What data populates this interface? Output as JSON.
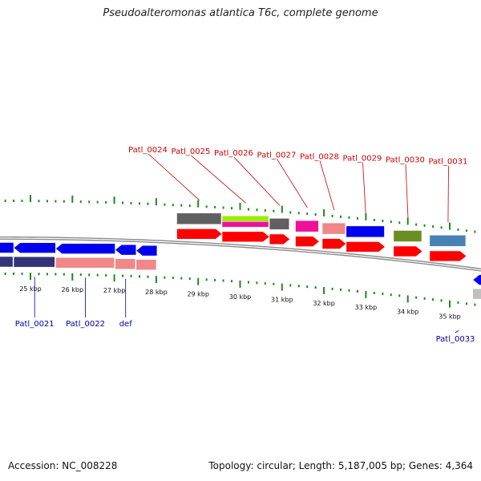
{
  "title": "Pseudoalteromonas atlantica T6c, complete genome",
  "accession": "Accession: NC_008228",
  "summary": "Topology: circular; Length: 5,187,005 bp; Genes: 4,364",
  "colors": {
    "tick_green": "#1a8a1a",
    "forward_label": "#cc0000",
    "reverse_label": "#0000aa",
    "backbone": "#8a8a8a",
    "cds_red": "#ff0000",
    "cds_blue": "#0000ee"
  },
  "axis": {
    "unit": "kbp",
    "ticks": [
      {
        "kb": 25,
        "label": "25 kbp"
      },
      {
        "kb": 26,
        "label": "26 kbp"
      },
      {
        "kb": 27,
        "label": "27 kbp"
      },
      {
        "kb": 28,
        "label": "28 kbp"
      },
      {
        "kb": 29,
        "label": "29 kbp"
      },
      {
        "kb": 30,
        "label": "30 kbp"
      },
      {
        "kb": 31,
        "label": "31 kbp"
      },
      {
        "kb": 32,
        "label": "32 kbp"
      },
      {
        "kb": 33,
        "label": "33 kbp"
      },
      {
        "kb": 34,
        "label": "34 kbp"
      },
      {
        "kb": 35,
        "label": "35 kbp"
      }
    ]
  },
  "genes": [
    {
      "label": "Patl_0024",
      "strand": "+",
      "start_kb": 28.49,
      "end_kb": 29.57,
      "label_color": "#cc0000",
      "cog_color": "#606060",
      "arrow_color": "#ff0000"
    },
    {
      "label": "Patl_0025",
      "strand": "+",
      "start_kb": 29.57,
      "end_kb": 30.7,
      "label_color": "#cc0000",
      "cog_color": "#99ee00",
      "cog_color2": "#ee1199",
      "arrow_color": "#ff0000"
    },
    {
      "label": "Patl_0026",
      "strand": "+",
      "start_kb": 30.7,
      "end_kb": 31.19,
      "label_color": "#cc0000",
      "cog_color": "#606060",
      "arrow_color": "#ff0000"
    },
    {
      "label": "Patl_0027",
      "strand": "+",
      "start_kb": 31.32,
      "end_kb": 31.89,
      "label_color": "#cc0000",
      "cog_color": "#ee1199",
      "arrow_color": "#ff0000"
    },
    {
      "label": "Patl_0028",
      "strand": "+",
      "start_kb": 31.96,
      "end_kb": 32.53,
      "label_color": "#cc0000",
      "cog_color": "#ee8888",
      "arrow_color": "#ff0000"
    },
    {
      "label": "Patl_0029",
      "strand": "+",
      "start_kb": 32.53,
      "end_kb": 33.46,
      "label_color": "#cc0000",
      "cog_color": "#0000ee",
      "arrow_color": "#ff0000"
    },
    {
      "label": "Patl_0030",
      "strand": "+",
      "start_kb": 33.66,
      "end_kb": 34.35,
      "label_color": "#cc0000",
      "cog_color": "#6b8e23",
      "arrow_color": "#ff0000"
    },
    {
      "label": "Patl_0031",
      "strand": "+",
      "start_kb": 34.52,
      "end_kb": 35.4,
      "label_color": "#cc0000",
      "cog_color": "#4682b4",
      "arrow_color": "#ff0000"
    },
    {
      "label": "Patl_0021",
      "strand": "-",
      "start_kb": 24.6,
      "end_kb": 25.6,
      "label_color": "#0000aa",
      "cog_color": "#333377",
      "arrow_color": "#0000ee"
    },
    {
      "label": "Patl_0022",
      "strand": "-",
      "start_kb": 25.6,
      "end_kb": 27.02,
      "label_color": "#0000aa",
      "cog_color": "#f08888",
      "arrow_color": "#0000ee"
    },
    {
      "label": "def",
      "strand": "-",
      "start_kb": 27.02,
      "end_kb": 27.52,
      "label_color": "#0000aa",
      "cog_color": "#f08888",
      "arrow_color": "#0000ee"
    },
    {
      "label": "Patl_0033",
      "strand": "-",
      "start_kb": 35.55,
      "end_kb": 36.1,
      "label_color": "#0000aa",
      "cog_color": "#c0c0c0",
      "arrow_color": "#0000ee"
    }
  ],
  "extra_features": [
    {
      "strand": "-",
      "start_kb": 24.0,
      "end_kb": 24.6,
      "arrow_color": "#0000ee",
      "cog_color": "#333377"
    },
    {
      "strand": "-",
      "start_kb": 27.52,
      "end_kb": 28.02,
      "arrow_color": "#0000ee",
      "cog_color": "#f08888"
    }
  ]
}
